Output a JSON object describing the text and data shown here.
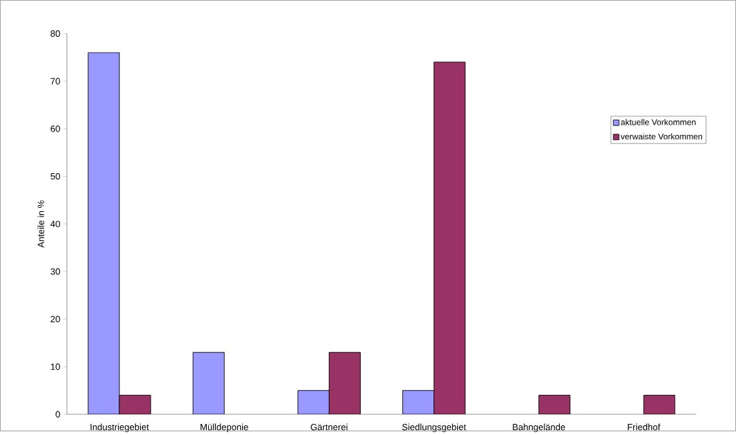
{
  "chart_data": {
    "type": "bar",
    "ylabel": "Anteile in %",
    "categories": [
      "Industriegebiet",
      "Mülldeponie",
      "Gärtnerei",
      "Siedlungsgebiet",
      "Bahngelände",
      "Friedhof"
    ],
    "series": [
      {
        "name": "aktuelle Vorkommen",
        "color": "#9999ff",
        "values": [
          76,
          13,
          5,
          5,
          null,
          null
        ]
      },
      {
        "name": "verwaiste Vorkommen",
        "color": "#993366",
        "values": [
          4,
          null,
          13,
          74,
          4,
          4
        ]
      }
    ],
    "ylim": [
      0,
      80
    ],
    "yticks": [
      0,
      10,
      20,
      30,
      40,
      50,
      60,
      70,
      80
    ],
    "legend": "right",
    "grid": false
  }
}
